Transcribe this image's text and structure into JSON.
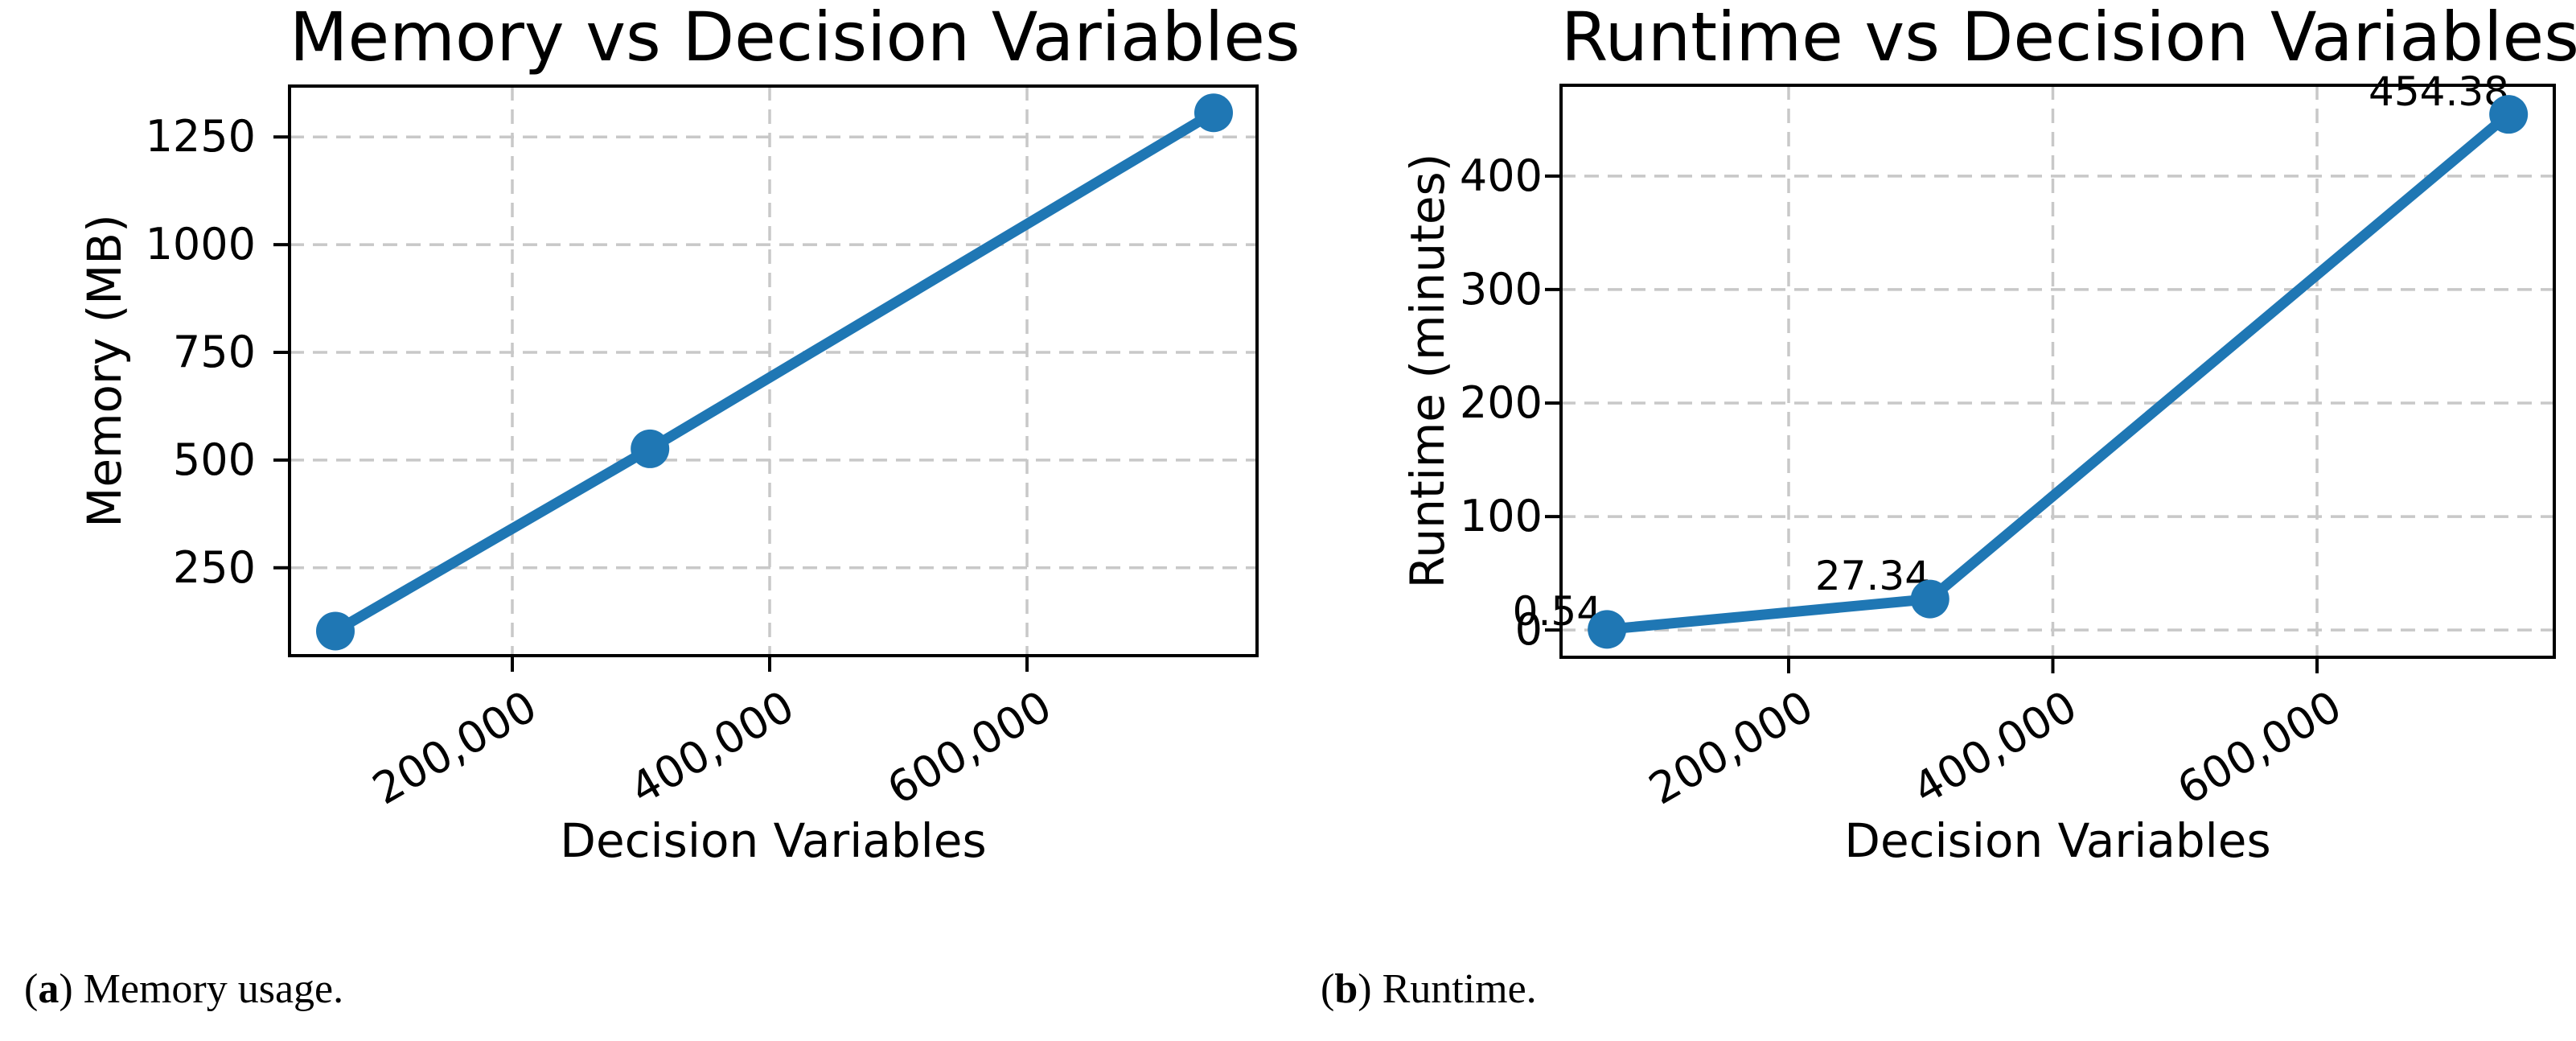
{
  "colors": {
    "line": "#1f77b4",
    "grid": "#c8c8c8",
    "spine": "#000000",
    "text": "#000000"
  },
  "chart_data": [
    {
      "id": "memory",
      "type": "line",
      "title": "Memory vs Decision Variables",
      "xlabel": "Decision Variables",
      "ylabel": "Memory (MB)",
      "x": [
        62500,
        307000,
        745000
      ],
      "y": [
        103,
        526,
        1306
      ],
      "xlim": [
        26875,
        778750
      ],
      "ylim": [
        46,
        1368
      ],
      "x_ticks": [
        {
          "value": 200000,
          "label": "200,000"
        },
        {
          "value": 400000,
          "label": "400,000"
        },
        {
          "value": 600000,
          "label": "600,000"
        }
      ],
      "y_ticks": [
        {
          "value": 250,
          "label": "250"
        },
        {
          "value": 500,
          "label": "500"
        },
        {
          "value": 750,
          "label": "750"
        },
        {
          "value": 1000,
          "label": "1000"
        },
        {
          "value": 1250,
          "label": "1250"
        }
      ],
      "grid": true,
      "legend_position": "none",
      "marker": "o",
      "annotations": []
    },
    {
      "id": "runtime",
      "type": "line",
      "title": "Runtime vs Decision Variables",
      "xlabel": "Decision Variables",
      "ylabel": "Runtime (minutes)",
      "x": [
        62500,
        307000,
        745000
      ],
      "y": [
        0.54,
        27.34,
        454.38
      ],
      "xlim": [
        27700,
        779600
      ],
      "ylim": [
        -24,
        480
      ],
      "x_ticks": [
        {
          "value": 200000,
          "label": "200,000"
        },
        {
          "value": 400000,
          "label": "400,000"
        },
        {
          "value": 600000,
          "label": "600,000"
        }
      ],
      "y_ticks": [
        {
          "value": 0,
          "label": "0"
        },
        {
          "value": 100,
          "label": "100"
        },
        {
          "value": 200,
          "label": "200"
        },
        {
          "value": 300,
          "label": "300"
        },
        {
          "value": 400,
          "label": "400"
        }
      ],
      "grid": true,
      "legend_position": "none",
      "marker": "o",
      "annotations": [
        {
          "text": "0.54"
        },
        {
          "text": "27.34"
        },
        {
          "text": "454.38"
        }
      ]
    }
  ],
  "captions": {
    "a": {
      "open": "(",
      "letter": "a",
      "close": ") ",
      "text": "Memory usage."
    },
    "b": {
      "open": "(",
      "letter": "b",
      "close": ") ",
      "text": "Runtime."
    }
  }
}
